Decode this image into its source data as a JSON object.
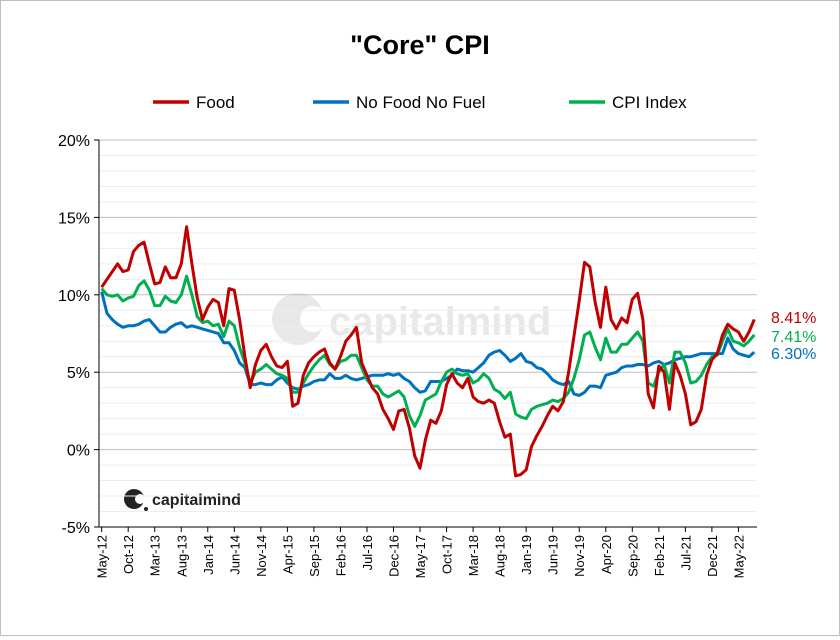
{
  "chart_data": {
    "type": "line",
    "title": "\"Core\" CPI",
    "xlabel": "",
    "ylabel": "",
    "ylim": [
      -5,
      20
    ],
    "yticks": [
      -5,
      0,
      5,
      10,
      15,
      20
    ],
    "ytick_labels": [
      "-5%",
      "0%",
      "5%",
      "10%",
      "15%",
      "20%"
    ],
    "grid": "horizontal",
    "legend_position": "top",
    "x_tick_labels": [
      {
        "i": 0,
        "label": "May-12"
      },
      {
        "i": 5,
        "label": "Oct-12"
      },
      {
        "i": 10,
        "label": "Mar-13"
      },
      {
        "i": 15,
        "label": "Aug-13"
      },
      {
        "i": 20,
        "label": "Jan-14"
      },
      {
        "i": 25,
        "label": "Jun-14"
      },
      {
        "i": 30,
        "label": "Nov-14"
      },
      {
        "i": 35,
        "label": "Apr-15"
      },
      {
        "i": 40,
        "label": "Sep-15"
      },
      {
        "i": 45,
        "label": "Feb-16"
      },
      {
        "i": 50,
        "label": "Jul-16"
      },
      {
        "i": 55,
        "label": "Dec-16"
      },
      {
        "i": 60,
        "label": "May-17"
      },
      {
        "i": 65,
        "label": "Oct-17"
      },
      {
        "i": 70,
        "label": "Mar-18"
      },
      {
        "i": 75,
        "label": "Aug-18"
      },
      {
        "i": 80,
        "label": "Jan-19"
      },
      {
        "i": 85,
        "label": "Jun-19"
      },
      {
        "i": 90,
        "label": "Nov-19"
      },
      {
        "i": 95,
        "label": "Apr-20"
      },
      {
        "i": 100,
        "label": "Sep-20"
      },
      {
        "i": 105,
        "label": "Feb-21"
      },
      {
        "i": 110,
        "label": "Jul-21"
      },
      {
        "i": 115,
        "label": "Dec-21"
      },
      {
        "i": 120,
        "label": "May-22"
      }
    ],
    "x_count": 124,
    "series": [
      {
        "name": "Food",
        "color": "#c00000",
        "end_label": "8.41%",
        "values": [
          10.5,
          11.0,
          11.5,
          12.0,
          11.5,
          11.6,
          12.8,
          13.2,
          13.4,
          12.0,
          10.7,
          10.8,
          11.8,
          11.1,
          11.1,
          12.0,
          14.4,
          12.0,
          9.8,
          8.4,
          9.2,
          9.7,
          9.5,
          8.0,
          10.4,
          10.3,
          8.4,
          6.0,
          4.0,
          5.5,
          6.4,
          6.8,
          6.0,
          5.4,
          5.3,
          5.7,
          2.8,
          3.0,
          4.8,
          5.6,
          6.0,
          6.3,
          6.5,
          5.6,
          5.2,
          6.0,
          7.0,
          7.4,
          7.9,
          5.6,
          4.8,
          4.0,
          3.6,
          2.6,
          2.0,
          1.3,
          2.5,
          2.6,
          1.4,
          -0.4,
          -1.2,
          0.6,
          1.9,
          1.7,
          2.5,
          4.2,
          4.9,
          4.3,
          4.0,
          4.6,
          3.4,
          3.1,
          3.0,
          3.2,
          3.0,
          1.8,
          0.8,
          1.0,
          -1.7,
          -1.6,
          -1.3,
          0.2,
          0.9,
          1.5,
          2.2,
          2.8,
          2.5,
          3.1,
          5.0,
          7.3,
          9.6,
          12.1,
          11.8,
          9.5,
          7.9,
          10.5,
          8.4,
          7.8,
          8.5,
          8.2,
          9.7,
          10.1,
          8.4,
          3.6,
          2.7,
          5.4,
          5.0,
          2.6,
          5.6,
          4.8,
          3.6,
          1.6,
          1.8,
          2.6,
          4.8,
          5.8,
          6.2,
          7.4,
          8.1,
          7.8,
          7.6,
          7.0,
          7.6,
          8.41
        ]
      },
      {
        "name": "No Food No Fuel",
        "color": "#0070c0",
        "end_label": "6.30%",
        "values": [
          10.2,
          8.8,
          8.4,
          8.1,
          7.9,
          8.0,
          8.0,
          8.1,
          8.3,
          8.4,
          8.0,
          7.6,
          7.6,
          7.9,
          8.1,
          8.2,
          7.9,
          8.0,
          7.9,
          7.8,
          7.7,
          7.6,
          7.5,
          6.9,
          6.9,
          6.4,
          5.6,
          5.3,
          4.2,
          4.2,
          4.3,
          4.2,
          4.2,
          4.5,
          4.7,
          4.3,
          4.0,
          3.9,
          4.1,
          4.2,
          4.4,
          4.5,
          4.5,
          4.9,
          4.6,
          4.6,
          4.8,
          4.6,
          4.5,
          4.6,
          4.7,
          4.8,
          4.8,
          4.8,
          4.9,
          4.8,
          4.9,
          4.6,
          4.4,
          4.0,
          3.7,
          3.8,
          4.4,
          4.4,
          4.4,
          4.6,
          4.8,
          5.2,
          5.1,
          5.1,
          5.0,
          5.3,
          5.6,
          6.1,
          6.3,
          6.4,
          6.1,
          5.7,
          5.9,
          6.2,
          5.7,
          5.6,
          5.3,
          5.2,
          4.9,
          4.5,
          4.3,
          4.2,
          4.4,
          3.6,
          3.5,
          3.7,
          4.1,
          4.1,
          4.0,
          4.8,
          4.9,
          5.0,
          5.3,
          5.4,
          5.4,
          5.5,
          5.5,
          5.4,
          5.6,
          5.7,
          5.5,
          5.6,
          5.8,
          5.9,
          6.0,
          6.0,
          6.1,
          6.2,
          6.2,
          6.2,
          6.2,
          6.2,
          7.2,
          6.5,
          6.2,
          6.1,
          6.0,
          6.3
        ]
      },
      {
        "name": "CPI Index",
        "color": "#00b050",
        "end_label": "7.41%",
        "values": [
          10.4,
          10.0,
          9.9,
          10.0,
          9.6,
          9.8,
          9.9,
          10.6,
          10.9,
          10.3,
          9.3,
          9.3,
          9.9,
          9.6,
          9.5,
          10.0,
          11.2,
          10.0,
          8.6,
          8.2,
          8.3,
          8.0,
          8.1,
          7.3,
          8.3,
          8.0,
          6.6,
          5.6,
          4.3,
          5.0,
          5.2,
          5.5,
          5.2,
          4.9,
          4.8,
          4.6,
          3.7,
          3.7,
          4.3,
          4.9,
          5.4,
          5.8,
          6.1,
          5.5,
          5.2,
          5.7,
          5.8,
          6.1,
          6.1,
          5.3,
          4.5,
          4.1,
          4.1,
          3.6,
          3.4,
          3.6,
          3.8,
          3.4,
          2.2,
          1.5,
          2.2,
          3.2,
          3.4,
          3.6,
          4.4,
          5.0,
          5.2,
          4.9,
          4.8,
          4.9,
          4.3,
          4.5,
          4.9,
          4.6,
          3.9,
          3.7,
          3.3,
          3.7,
          2.3,
          2.1,
          2.0,
          2.6,
          2.8,
          2.9,
          3.0,
          3.2,
          3.1,
          3.3,
          3.7,
          4.6,
          5.8,
          7.4,
          7.6,
          6.6,
          5.8,
          7.2,
          6.3,
          6.3,
          6.8,
          6.8,
          7.2,
          7.6,
          7.0,
          4.3,
          4.1,
          5.0,
          5.5,
          4.3,
          6.3,
          6.3,
          5.6,
          4.3,
          4.4,
          4.8,
          5.5,
          6.0,
          6.1,
          7.0,
          7.8,
          7.0,
          6.9,
          6.7,
          7.0,
          7.41
        ]
      }
    ]
  },
  "watermark": {
    "logo_text": "capitalmind",
    "logo_icon": "capitalmind-logo-icon"
  }
}
